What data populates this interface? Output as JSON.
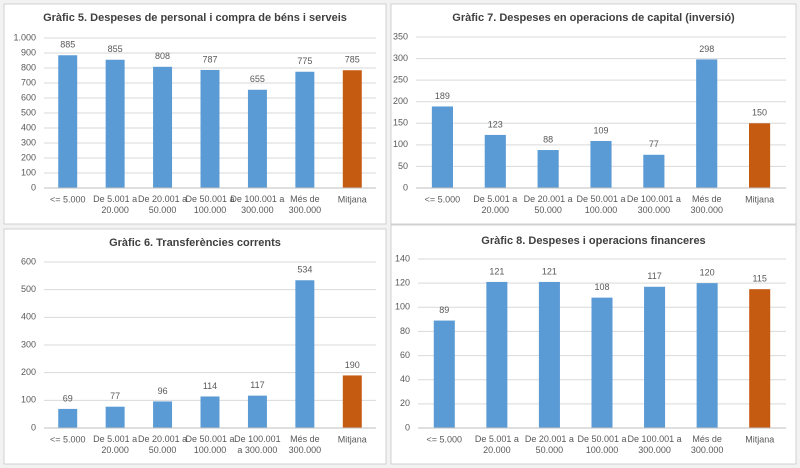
{
  "chart_data": [
    {
      "type": "bar",
      "title": "Gràfic 5. Despeses de personal i compra de béns i serveis",
      "categories": [
        "<= 5.000",
        "De 5.001 a\n20.000",
        "De 20.001 a\n50.000",
        "De 50.001 a\n100.000",
        "De 100.001 a\n300.000",
        "Més de\n300.000",
        "Mitjana"
      ],
      "values": [
        885,
        855,
        808,
        787,
        655,
        775,
        785
      ],
      "colors": [
        "#5b9bd5",
        "#5b9bd5",
        "#5b9bd5",
        "#5b9bd5",
        "#5b9bd5",
        "#5b9bd5",
        "#c55a11"
      ],
      "ylim": [
        0,
        1000
      ],
      "yticks": [
        0,
        100,
        200,
        300,
        400,
        500,
        600,
        700,
        800,
        900,
        {
          "value": 1000,
          "label": "1.000"
        }
      ],
      "grid": true
    },
    {
      "type": "bar",
      "title": "Gràfic 7. Despeses en operacions de capital (inversió)",
      "categories": [
        "<= 5.000",
        "De 5.001 a\n20.000",
        "De 20.001 a\n50.000",
        "De 50.001 a\n100.000",
        "De 100.001 a\n300.000",
        "Més de\n300.000",
        "Mitjana"
      ],
      "values": [
        189,
        123,
        88,
        109,
        77,
        298,
        150
      ],
      "colors": [
        "#5b9bd5",
        "#5b9bd5",
        "#5b9bd5",
        "#5b9bd5",
        "#5b9bd5",
        "#5b9bd5",
        "#c55a11"
      ],
      "ylim": [
        0,
        350
      ],
      "yticks": [
        0,
        50,
        100,
        150,
        200,
        250,
        300,
        350
      ],
      "grid": true
    },
    {
      "type": "bar",
      "title": "Gràfic 6. Transferències corrents",
      "categories": [
        "<= 5.000",
        "De 5.001 a\n20.000",
        "De 20.001 a\n50.000",
        "De 50.001 a\n100.000",
        "De 100.001\na 300.000",
        "Més de\n300.000",
        "Mitjana"
      ],
      "values": [
        69,
        77,
        96,
        114,
        117,
        534,
        190
      ],
      "colors": [
        "#5b9bd5",
        "#5b9bd5",
        "#5b9bd5",
        "#5b9bd5",
        "#5b9bd5",
        "#5b9bd5",
        "#c55a11"
      ],
      "ylim": [
        0,
        600
      ],
      "yticks": [
        0,
        100,
        200,
        300,
        400,
        500,
        600
      ],
      "grid": true
    },
    {
      "type": "bar",
      "title": "Gràfic 8. Despeses i operacions financeres",
      "categories": [
        "<= 5.000",
        "De 5.001 a\n20.000",
        "De 20.001 a\n50.000",
        "De 50.001 a\n100.000",
        "De 100.001 a\n300.000",
        "Més de\n300.000",
        "Mitjana"
      ],
      "values": [
        89,
        121,
        121,
        108,
        117,
        120,
        115
      ],
      "colors": [
        "#5b9bd5",
        "#5b9bd5",
        "#5b9bd5",
        "#5b9bd5",
        "#5b9bd5",
        "#5b9bd5",
        "#c55a11"
      ],
      "ylim": [
        0,
        140
      ],
      "yticks": [
        0,
        20,
        40,
        60,
        80,
        100,
        120,
        140
      ],
      "grid": true
    }
  ]
}
